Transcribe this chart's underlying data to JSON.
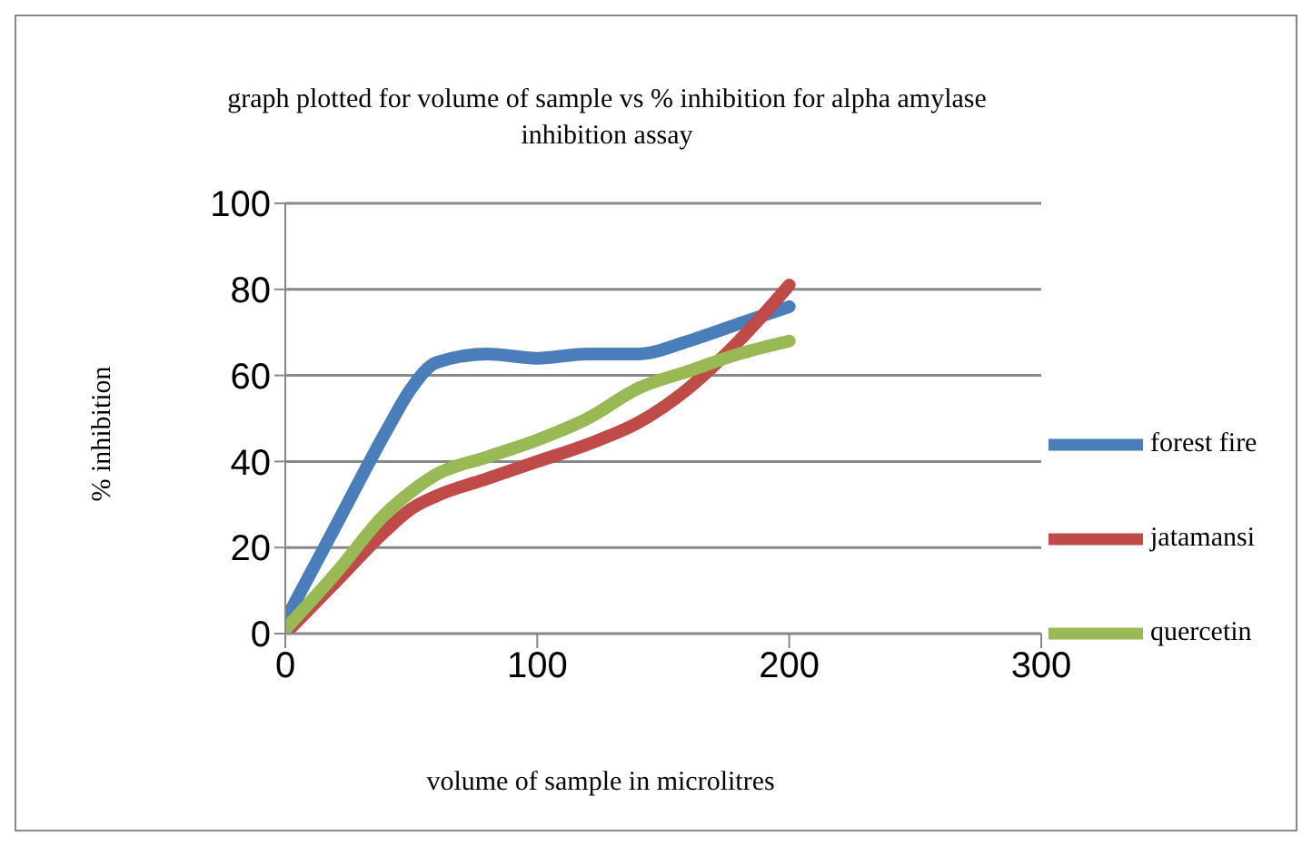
{
  "chart_data": {
    "type": "line",
    "title": "graph plotted for volume of sample vs % inhibition for alpha amylase inhibition assay",
    "xlabel": "volume of sample in microlitres",
    "ylabel": "% inhibition",
    "x": [
      0,
      20,
      40,
      50,
      60,
      80,
      100,
      120,
      140,
      160,
      180,
      200
    ],
    "series": [
      {
        "name": "forest fire",
        "color": "#4a7ebb",
        "values": [
          3,
          25,
          47,
          57,
          63,
          65,
          64,
          65,
          65,
          68,
          72,
          76
        ]
      },
      {
        "name": "jatamansi",
        "color": "#be4b48",
        "values": [
          0,
          12,
          24,
          29,
          32,
          36,
          40,
          44,
          49,
          57,
          68,
          81
        ]
      },
      {
        "name": "quercetin",
        "color": "#98b954",
        "values": [
          1,
          14,
          28,
          33,
          37,
          41,
          45,
          50,
          57,
          61,
          65,
          68
        ]
      }
    ],
    "xlim": [
      0,
      300
    ],
    "xticks": [
      0,
      100,
      200,
      300
    ],
    "ylim": [
      0,
      100
    ],
    "yticks": [
      0,
      20,
      40,
      60,
      80,
      100
    ],
    "grid": "y",
    "legend": "right",
    "marker": "none",
    "line_style": "solid"
  }
}
